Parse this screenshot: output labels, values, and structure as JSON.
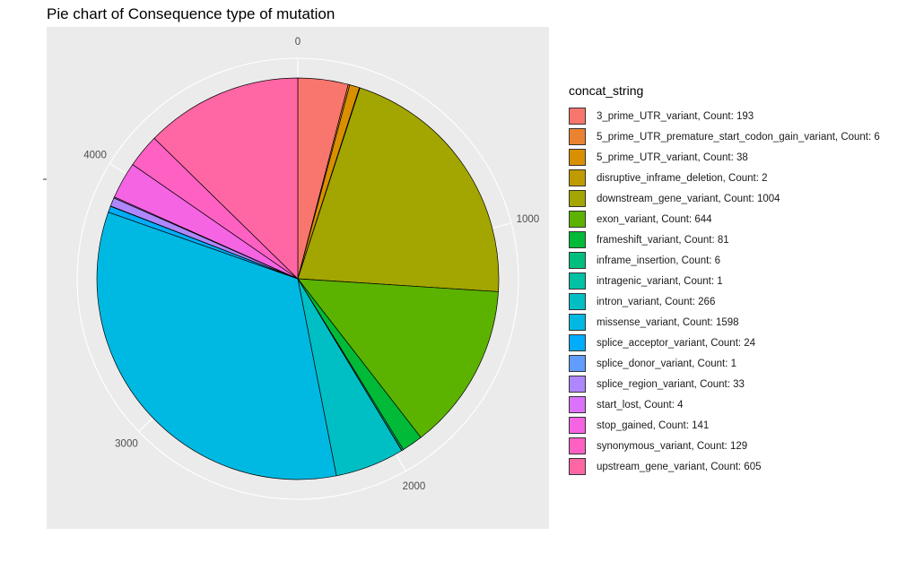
{
  "chart_data": {
    "type": "pie",
    "title": "Pie chart of Consequence type of mutation",
    "legend_title": "concat_string",
    "legend_position": "right",
    "grid": true,
    "direction": "clockwise",
    "start_angle": "top",
    "tick_labels": [
      "0",
      "1000",
      "2000",
      "3000",
      "4000"
    ],
    "tick_values": [
      0,
      1000,
      2000,
      3000,
      4000
    ],
    "total": 4776,
    "series": [
      {
        "label": "3_prime_UTR_variant, Count: 193",
        "value": 193,
        "color": "#F8766D"
      },
      {
        "label": "5_prime_UTR_premature_start_codon_gain_variant, Count: 6",
        "value": 6,
        "color": "#EA8331"
      },
      {
        "label": "5_prime_UTR_variant, Count: 38",
        "value": 38,
        "color": "#D89000"
      },
      {
        "label": "disruptive_inframe_deletion, Count: 2",
        "value": 2,
        "color": "#C09B00"
      },
      {
        "label": "downstream_gene_variant, Count: 1004",
        "value": 1004,
        "color": "#A3A500"
      },
      {
        "label": "exon_variant, Count: 644",
        "value": 644,
        "color": "#5BB300"
      },
      {
        "label": "frameshift_variant, Count: 81",
        "value": 81,
        "color": "#00BA38"
      },
      {
        "label": "inframe_insertion, Count: 6",
        "value": 6,
        "color": "#00BF7D"
      },
      {
        "label": "intragenic_variant, Count: 1",
        "value": 1,
        "color": "#00C1A3"
      },
      {
        "label": "intron_variant, Count: 266",
        "value": 266,
        "color": "#00BFC4"
      },
      {
        "label": "missense_variant, Count: 1598",
        "value": 1598,
        "color": "#00B9E3"
      },
      {
        "label": "splice_acceptor_variant, Count: 24",
        "value": 24,
        "color": "#00ADFA"
      },
      {
        "label": "splice_donor_variant, Count: 1",
        "value": 1,
        "color": "#619CFF"
      },
      {
        "label": "splice_region_variant, Count: 33",
        "value": 33,
        "color": "#AE87FF"
      },
      {
        "label": "start_lost, Count: 4",
        "value": 4,
        "color": "#DB72FB"
      },
      {
        "label": "stop_gained, Count: 141",
        "value": 141,
        "color": "#F564E3"
      },
      {
        "label": "synonymous_variant, Count: 129",
        "value": 129,
        "color": "#FF61C3"
      },
      {
        "label": "upstream_gene_variant, Count: 605",
        "value": 605,
        "color": "#FF67A4"
      }
    ]
  }
}
